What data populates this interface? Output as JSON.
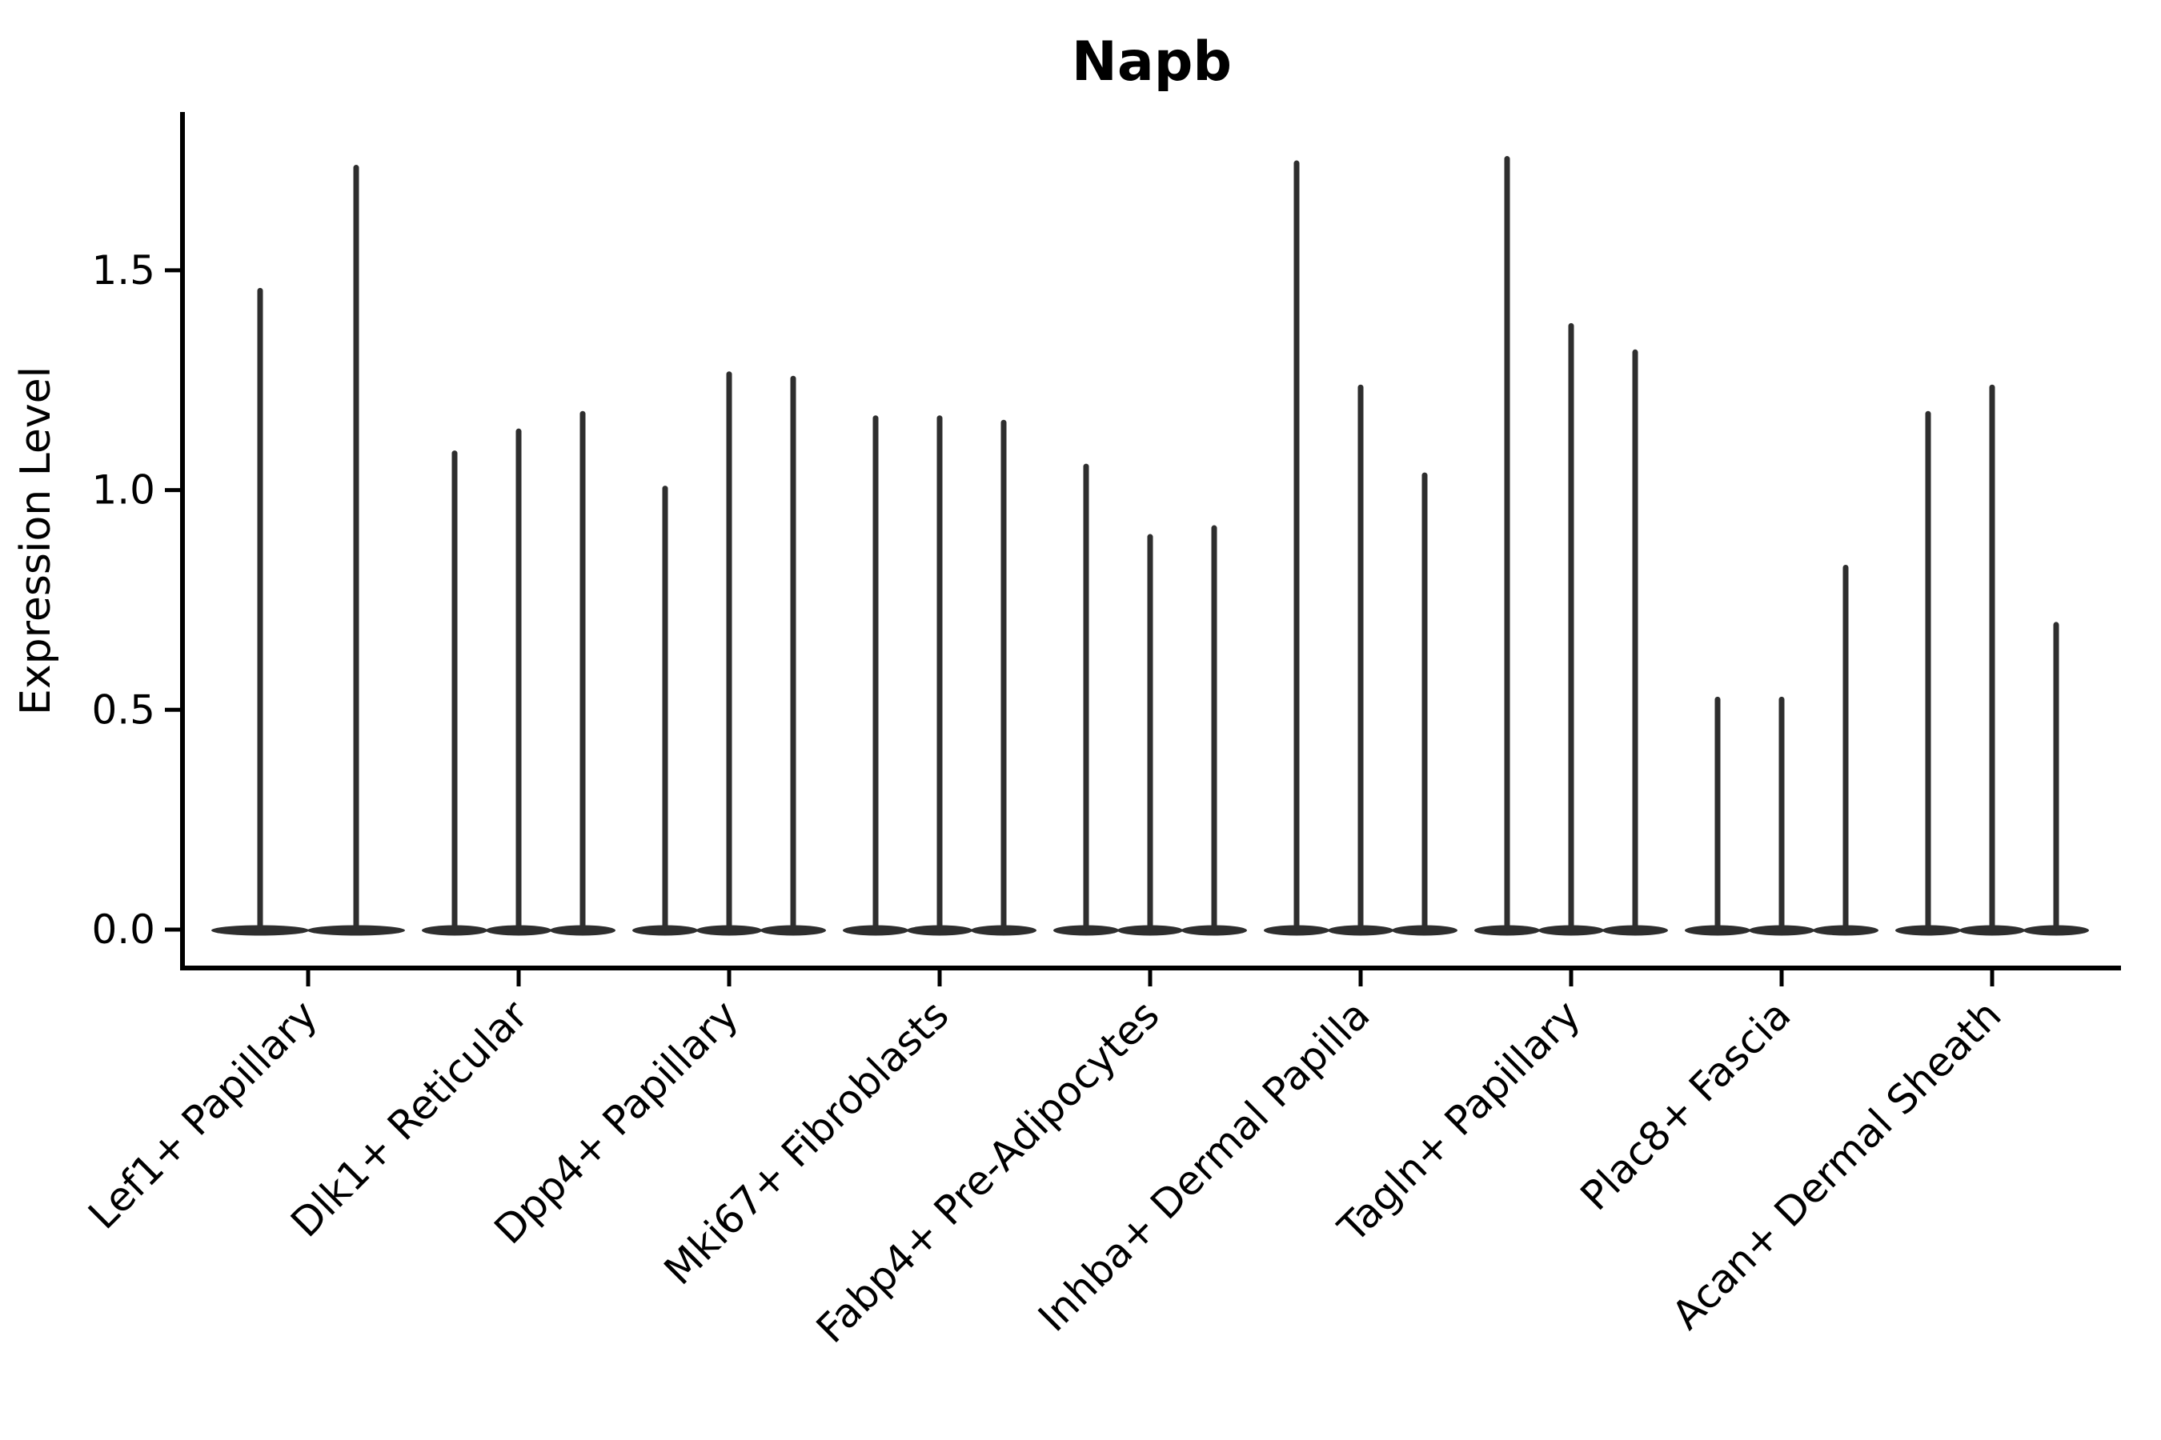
{
  "chart_data": {
    "type": "violin",
    "title": "Napb",
    "ylabel": "Expression Level",
    "xlabel": "",
    "ytick_labels": [
      "0.0",
      "0.5",
      "1.0",
      "1.5"
    ],
    "ytick_values": [
      0.0,
      0.5,
      1.0,
      1.5
    ],
    "ylim": [
      -0.09,
      1.85
    ],
    "grid": false,
    "legend_position": "none",
    "violin_color": "#2e2e2e",
    "axis_color": "#000000",
    "background_color": "#ffffff",
    "categories": [
      "Lef1+ Papillary",
      "Dlk1+ Reticular",
      "Dpp4+ Papillary",
      "Mki67+ Fibroblasts",
      "Fabp4+ Pre-Adipocytes",
      "Inhba+ Dermal Papilla",
      "Tagln+ Papillary",
      "Plac8+ Fascia",
      "Acan+ Dermal Sheath"
    ],
    "groups": [
      {
        "category": "Lef1+ Papillary",
        "violin_maxima": [
          1.46,
          1.74
        ]
      },
      {
        "category": "Dlk1+ Reticular",
        "violin_maxima": [
          1.09,
          1.14,
          1.18
        ]
      },
      {
        "category": "Dpp4+ Papillary",
        "violin_maxima": [
          1.01,
          1.27,
          1.26
        ]
      },
      {
        "category": "Mki67+ Fibroblasts",
        "violin_maxima": [
          1.17,
          1.17,
          1.16
        ]
      },
      {
        "category": "Fabp4+ Pre-Adipocytes",
        "violin_maxima": [
          1.06,
          0.9,
          0.92
        ]
      },
      {
        "category": "Inhba+ Dermal Papilla",
        "violin_maxima": [
          1.75,
          1.24,
          1.04
        ]
      },
      {
        "category": "Tagln+ Papillary",
        "violin_maxima": [
          1.76,
          1.38,
          1.32
        ]
      },
      {
        "category": "Plac8+ Fascia",
        "violin_maxima": [
          0.53,
          0.53,
          0.83
        ]
      },
      {
        "category": "Acan+ Dermal Sheath",
        "violin_maxima": [
          1.18,
          1.24,
          0.7
        ]
      }
    ],
    "shape_note": "each violin = wide flat lens at expression 0 plus a thin vertical spike up to the maximum value"
  }
}
